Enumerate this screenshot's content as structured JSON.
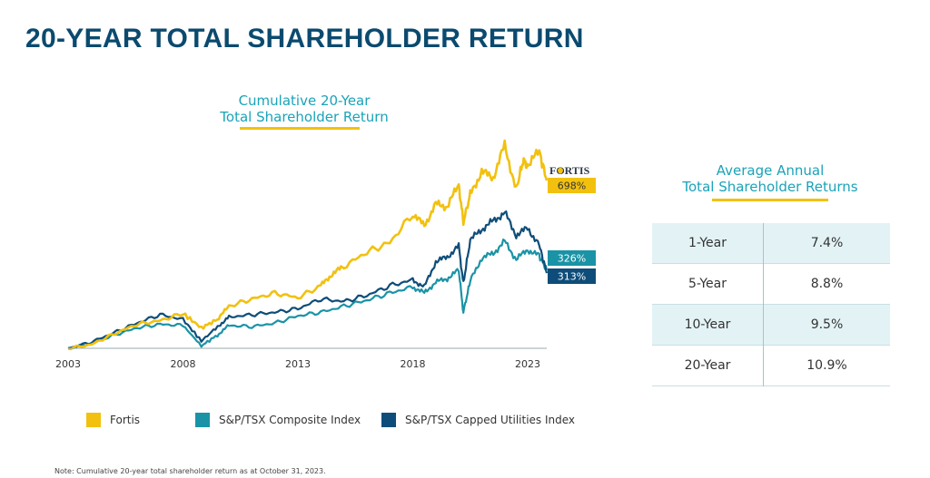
{
  "page_title": "20-YEAR TOTAL SHAREHOLDER RETURN",
  "chart_title_line1": "Cumulative 20-Year",
  "chart_title_line2": "Total Shareholder Return",
  "logo_text": "FORTIS",
  "colors": {
    "fortis": "#f2c10f",
    "composite": "#1a93a6",
    "utilities": "#0e4d79",
    "title": "#0b4a6f",
    "accent": "#1aa3b8"
  },
  "chart_data": {
    "type": "line",
    "title": "Cumulative 20-Year Total Shareholder Return",
    "x_ticks": [
      "2003",
      "2008",
      "2013",
      "2018",
      "2023"
    ],
    "xlim": [
      2003,
      2023.83
    ],
    "ylim": [
      0,
      800
    ],
    "grid": false,
    "legend_position": "bottom",
    "series": [
      {
        "name": "Fortis",
        "end_label": "698%",
        "x": [
          2003,
          2004,
          2005,
          2006,
          2007,
          2008,
          2008.8,
          2009.5,
          2010,
          2011,
          2012,
          2013,
          2014,
          2014.5,
          2015,
          2016,
          2017,
          2018,
          2018.5,
          2019,
          2019.5,
          2020,
          2020.2,
          2020.5,
          2021,
          2021.5,
          2022,
          2022.5,
          2022.8,
          2023,
          2023.5,
          2023.83
        ],
        "y": [
          0,
          15,
          60,
          100,
          115,
          145,
          85,
          120,
          175,
          205,
          230,
          210,
          260,
          310,
          340,
          400,
          440,
          560,
          510,
          600,
          590,
          680,
          525,
          640,
          735,
          710,
          845,
          660,
          780,
          760,
          820,
          698
        ]
      },
      {
        "name": "S&P/TSX Composite Index",
        "end_label": "326%",
        "x": [
          2003,
          2004,
          2005,
          2006,
          2007,
          2008,
          2008.8,
          2009.5,
          2010,
          2011,
          2012,
          2013,
          2014,
          2015,
          2016,
          2017,
          2018,
          2018.5,
          2019,
          2019.5,
          2020,
          2020.2,
          2020.5,
          2021,
          2021.5,
          2022,
          2022.5,
          2023,
          2023.5,
          2023.83
        ],
        "y": [
          0,
          20,
          55,
          85,
          100,
          95,
          10,
          55,
          95,
          90,
          105,
          135,
          150,
          175,
          200,
          230,
          255,
          230,
          275,
          290,
          325,
          150,
          280,
          375,
          395,
          445,
          370,
          410,
          385,
          326
        ]
      },
      {
        "name": "S&P/TSX Capped Utilities Index",
        "end_label": "313%",
        "x": [
          2003,
          2004,
          2005,
          2006,
          2007,
          2008,
          2008.8,
          2009.5,
          2010,
          2011,
          2012,
          2013,
          2014,
          2015,
          2016,
          2017,
          2018,
          2018.5,
          2019,
          2019.5,
          2020,
          2020.2,
          2020.5,
          2021,
          2021.5,
          2022,
          2022.5,
          2023,
          2023.5,
          2023.83
        ],
        "y": [
          0,
          25,
          65,
          105,
          140,
          120,
          30,
          90,
          130,
          140,
          150,
          165,
          205,
          195,
          220,
          260,
          285,
          255,
          360,
          380,
          425,
          270,
          450,
          495,
          530,
          565,
          470,
          500,
          430,
          313
        ]
      }
    ]
  },
  "legend": [
    "Fortis",
    "S&P/TSX Composite Index",
    "S&P/TSX Capped Utilities Index"
  ],
  "table_title_line1": "Average Annual",
  "table_title_line2": "Total Shareholder Returns",
  "returns": [
    {
      "period": "1-Year",
      "value": "7.4%"
    },
    {
      "period": "5-Year",
      "value": "8.8%"
    },
    {
      "period": "10-Year",
      "value": "9.5%"
    },
    {
      "period": "20-Year",
      "value": "10.9%"
    }
  ],
  "note": "Note: Cumulative 20-year total shareholder return as at October 31, 2023."
}
